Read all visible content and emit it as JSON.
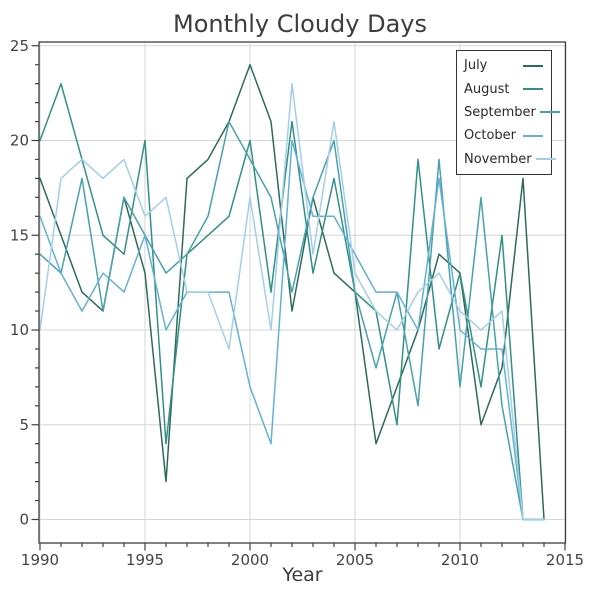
{
  "chart_data": {
    "type": "line",
    "title": "Monthly Cloudy Days",
    "xlabel": "Year",
    "ylabel": "",
    "x": [
      1990,
      1991,
      1992,
      1993,
      1994,
      1995,
      1996,
      1997,
      1998,
      1999,
      2000,
      2001,
      2002,
      2003,
      2004,
      2005,
      2006,
      2007,
      2008,
      2009,
      2010,
      2011,
      2012,
      2013,
      2014
    ],
    "series": [
      {
        "name": "July",
        "color": "#2d6a5a",
        "values": [
          18,
          15,
          12,
          11,
          17,
          13,
          2,
          18,
          19,
          21,
          24,
          21,
          11,
          17,
          13,
          12,
          4,
          7,
          10,
          14,
          13,
          5,
          8,
          18,
          0
        ]
      },
      {
        "name": "August",
        "color": "#319183",
        "values": [
          20,
          23,
          19,
          15,
          14,
          20,
          4,
          14,
          15,
          16,
          20,
          12,
          21,
          13,
          18,
          12,
          11,
          5,
          19,
          9,
          13,
          7,
          15,
          0,
          0
        ]
      },
      {
        "name": "September",
        "color": "#47a2ab",
        "values": [
          14,
          13,
          18,
          11,
          17,
          15,
          13,
          14,
          16,
          21,
          19,
          17,
          12,
          17,
          20,
          12,
          8,
          12,
          6,
          19,
          7,
          17,
          6,
          0,
          0
        ]
      },
      {
        "name": "October",
        "color": "#64b1d6",
        "values": [
          16,
          13,
          11,
          13,
          12,
          15,
          10,
          12,
          12,
          12,
          7,
          4,
          20,
          16,
          16,
          14,
          12,
          12,
          10,
          18,
          10,
          9,
          9,
          0,
          0
        ]
      },
      {
        "name": "November",
        "color": "#a2cfe9",
        "values": [
          10,
          18,
          19,
          18,
          19,
          16,
          17,
          12,
          12,
          9,
          17,
          10,
          23,
          14,
          21,
          13,
          11,
          10,
          12,
          13,
          11,
          10,
          11,
          0,
          0
        ]
      }
    ],
    "xlim": [
      1990,
      2015
    ],
    "ylim": [
      0,
      25
    ],
    "xticks": [
      1990,
      1995,
      2000,
      2005,
      2010,
      2015
    ],
    "yticks": [
      0,
      5,
      10,
      15,
      20,
      25
    ],
    "grid": true,
    "legend_position": "upper right",
    "theme": {
      "grid_color": "#d6d6d6",
      "spine_color": "#3f3f3f",
      "tick_label_color": "#444444",
      "title_color": "#3d3d3d",
      "background": "#ffffff"
    }
  }
}
